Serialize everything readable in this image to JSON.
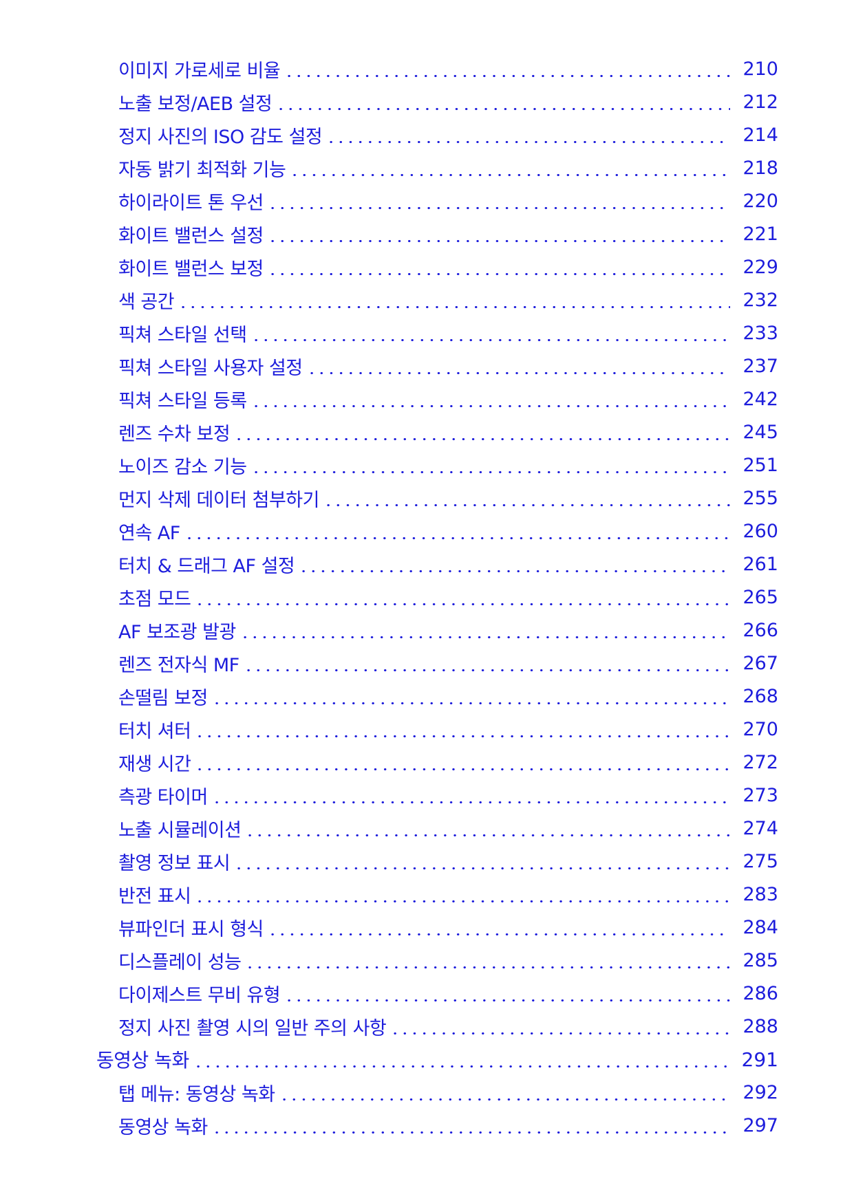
{
  "entries": [
    {
      "title": "이미지 가로세로 비율",
      "page": "210",
      "level": 2
    },
    {
      "title": "노출 보정/AEB 설정",
      "page": "212",
      "level": 2
    },
    {
      "title": "정지 사진의 ISO 감도 설정",
      "page": "214",
      "level": 2
    },
    {
      "title": "자동 밝기 최적화 기능",
      "page": "218",
      "level": 2
    },
    {
      "title": "하이라이트 톤 우선",
      "page": "220",
      "level": 2
    },
    {
      "title": "화이트 밸런스 설정",
      "page": "221",
      "level": 2
    },
    {
      "title": "화이트 밸런스 보정",
      "page": "229",
      "level": 2
    },
    {
      "title": "색 공간",
      "page": "232",
      "level": 2
    },
    {
      "title": "픽쳐 스타일 선택",
      "page": "233",
      "level": 2
    },
    {
      "title": "픽쳐 스타일 사용자 설정",
      "page": "237",
      "level": 2
    },
    {
      "title": "픽쳐 스타일 등록",
      "page": "242",
      "level": 2
    },
    {
      "title": "렌즈 수차 보정",
      "page": "245",
      "level": 2
    },
    {
      "title": "노이즈 감소 기능",
      "page": "251",
      "level": 2
    },
    {
      "title": "먼지 삭제 데이터 첨부하기",
      "page": "255",
      "level": 2
    },
    {
      "title": "연속 AF",
      "page": "260",
      "level": 2
    },
    {
      "title": "터치 & 드래그 AF 설정",
      "page": "261",
      "level": 2
    },
    {
      "title": "초점 모드",
      "page": "265",
      "level": 2
    },
    {
      "title": "AF 보조광 발광",
      "page": "266",
      "level": 2
    },
    {
      "title": "렌즈 전자식 MF",
      "page": "267",
      "level": 2
    },
    {
      "title": "손떨림 보정",
      "page": "268",
      "level": 2
    },
    {
      "title": "터치 셔터",
      "page": "270",
      "level": 2
    },
    {
      "title": "재생 시간",
      "page": "272",
      "level": 2
    },
    {
      "title": "측광 타이머",
      "page": "273",
      "level": 2
    },
    {
      "title": "노출 시뮬레이션",
      "page": "274",
      "level": 2
    },
    {
      "title": "촬영 정보 표시",
      "page": "275",
      "level": 2
    },
    {
      "title": "반전 표시",
      "page": "283",
      "level": 2
    },
    {
      "title": "뷰파인더 표시 형식",
      "page": "284",
      "level": 2
    },
    {
      "title": "디스플레이 성능",
      "page": "285",
      "level": 2
    },
    {
      "title": "다이제스트 무비 유형",
      "page": "286",
      "level": 2
    },
    {
      "title": "정지 사진 촬영 시의 일반 주의 사항",
      "page": "288",
      "level": 2
    },
    {
      "title": "동영상 녹화",
      "page": "291",
      "level": 1
    },
    {
      "title": "탭 메뉴: 동영상 녹화",
      "page": "292",
      "level": 2
    },
    {
      "title": "동영상 녹화",
      "page": "297",
      "level": 2
    }
  ],
  "colors": {
    "link": "#1d1ddc",
    "background": "#ffffff"
  }
}
